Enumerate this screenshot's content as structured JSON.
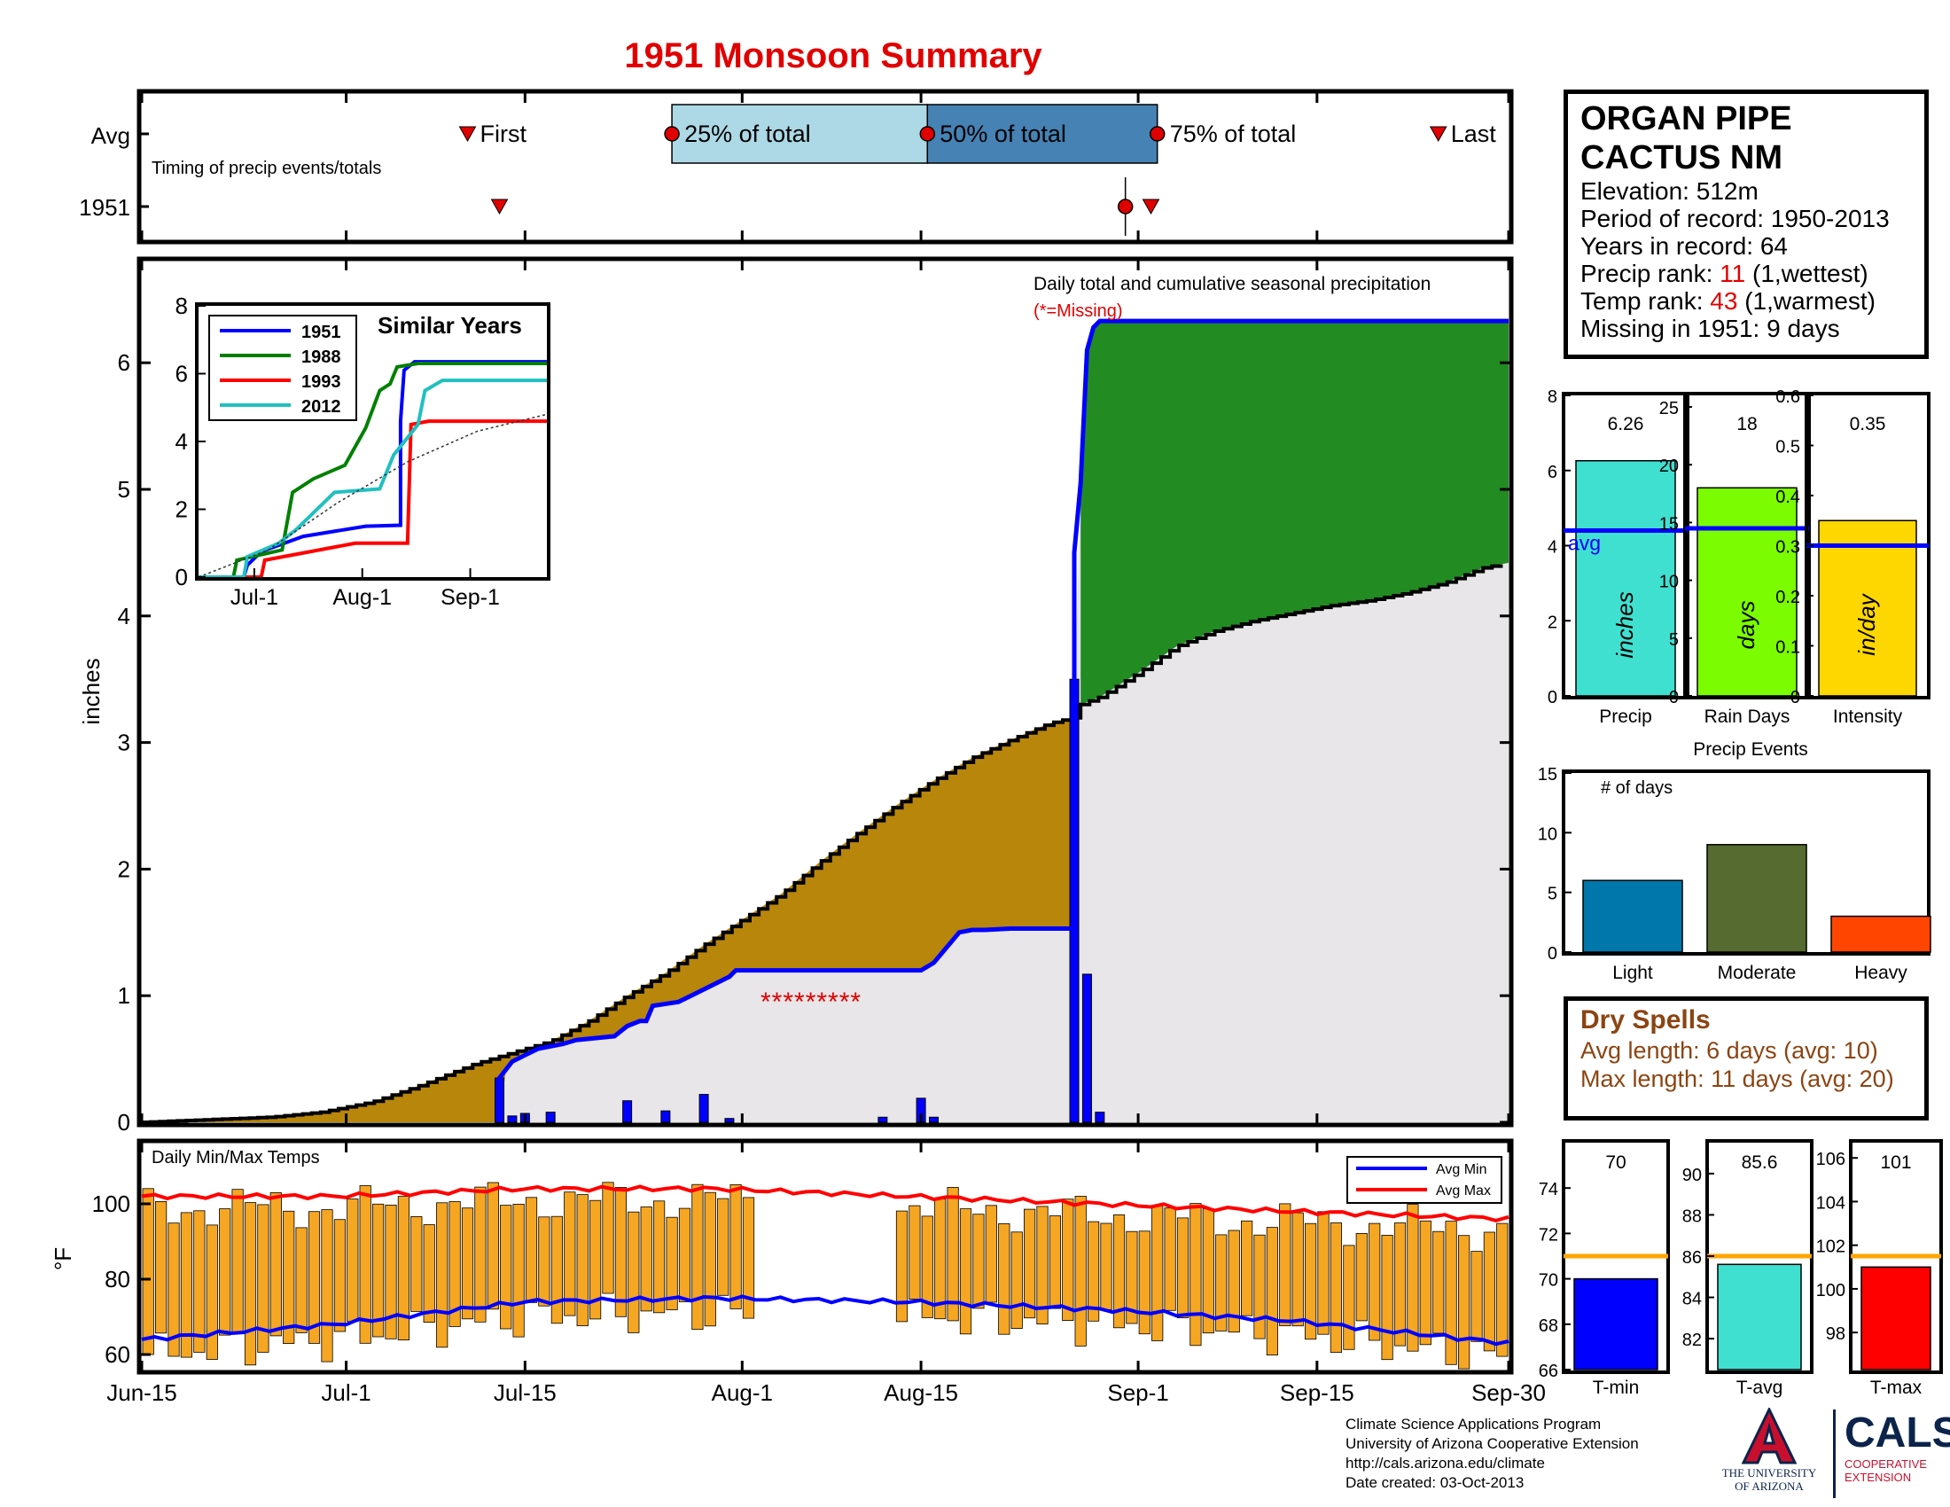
{
  "title": "1951 Monsoon Summary",
  "colors": {
    "title": "#e00000",
    "series_1951": "#0000ff",
    "series_1988": "#008000",
    "series_1993": "#ff0000",
    "series_2012": "#20c0c0",
    "avg_fill": "#b8860b",
    "above_avg_fill": "#228b22",
    "below_area": "#e8e6e8",
    "temp_bars": "#f5a623",
    "avg_min_line": "#0000ff",
    "avg_max_line": "#ff0000",
    "precip_bar": "#40e0d0",
    "raindays_bar": "#7cfc00",
    "intensity_bar": "#ffd700",
    "light": "#0077aa",
    "moderate": "#556b2f",
    "heavy": "#ff4500",
    "tmin_bar": "#0000ff",
    "tavg_bar": "#40e0d0",
    "tmax_bar": "#ff0000",
    "avg_line_orange": "#ffa500",
    "dry_text": "#8b4513"
  },
  "station": {
    "name_line1": "ORGAN PIPE",
    "name_line2": "CACTUS NM",
    "elevation": "Elevation: 512m",
    "period": "Period of record: 1950-2013",
    "years": "Years in record: 64",
    "precip_rank_label": "Precip rank: ",
    "precip_rank_value": "11",
    "precip_rank_note": " (1,wettest)",
    "temp_rank_label": "Temp rank: ",
    "temp_rank_value": "43",
    "temp_rank_note": " (1,warmest)",
    "missing": "Missing in 1951: 9 days"
  },
  "timing": {
    "row_labels": [
      "Avg",
      "1951"
    ],
    "caption": "Timing of precip events/totals",
    "first_label": "First",
    "last_label": "Last",
    "p25_label": "25% of total",
    "p50_label": "50% of total",
    "p75_label": "75% of total",
    "avg_first": 25.5,
    "avg_p25": 41.5,
    "avg_p50": 61.5,
    "avg_p75": 79.5,
    "avg_last": 101.5,
    "y1951_first": 28,
    "y1951_mark": 77,
    "y1951_last": 79
  },
  "main_chart": {
    "annotation": "Daily total and cumulative seasonal precipitation",
    "missing_note": "(*=Missing)",
    "missing_marks": "*********",
    "ylabel": "inches",
    "yticks": [
      "0",
      "1",
      "2",
      "3",
      "4",
      "5",
      "6"
    ],
    "xticks": [
      "Jun-15",
      "Jul-1",
      "Jul-15",
      "Aug-1",
      "Aug-15",
      "Sep-1",
      "Sep-15",
      "Sep-30"
    ],
    "xtick_days": [
      0,
      16,
      30,
      47,
      61,
      78,
      92,
      107
    ],
    "ylim": [
      0,
      6.8
    ],
    "xlim": [
      0,
      107
    ]
  },
  "chart_data": [
    {
      "type": "line",
      "title": "1951 Monsoon Summary",
      "xlabel": "",
      "ylabel": "inches",
      "series": [
        {
          "name": "1951 cumulative",
          "points": [
            [
              28,
              0
            ],
            [
              28,
              0.35
            ],
            [
              29,
              0.48
            ],
            [
              30,
              0.53
            ],
            [
              31,
              0.58
            ],
            [
              33,
              0.62
            ],
            [
              34,
              0.65
            ],
            [
              37,
              0.68
            ],
            [
              38,
              0.76
            ],
            [
              39,
              0.8
            ],
            [
              39.5,
              0.8
            ],
            [
              40,
              0.92
            ],
            [
              42,
              0.95
            ],
            [
              43,
              1.0
            ],
            [
              46,
              1.15
            ],
            [
              46.5,
              1.2
            ],
            [
              50,
              1.2
            ],
            [
              51,
              1.2
            ],
            [
              61,
              1.2
            ],
            [
              62,
              1.26
            ],
            [
              63,
              1.38
            ],
            [
              64,
              1.5
            ],
            [
              65,
              1.52
            ],
            [
              66,
              1.52
            ],
            [
              68,
              1.53
            ],
            [
              73,
              1.53
            ],
            [
              73,
              4.5
            ],
            [
              73.5,
              5.05
            ],
            [
              74,
              6.1
            ],
            [
              74.5,
              6.28
            ],
            [
              75,
              6.33
            ],
            [
              107,
              6.33
            ]
          ]
        },
        {
          "name": "Average cumulative",
          "points": [
            [
              0,
              0
            ],
            [
              5,
              0.02
            ],
            [
              10,
              0.04
            ],
            [
              14,
              0.08
            ],
            [
              18,
              0.16
            ],
            [
              22,
              0.3
            ],
            [
              26,
              0.46
            ],
            [
              29,
              0.55
            ],
            [
              32,
              0.64
            ],
            [
              35,
              0.8
            ],
            [
              38,
              1.0
            ],
            [
              41,
              1.18
            ],
            [
              44,
              1.4
            ],
            [
              47,
              1.6
            ],
            [
              50,
              1.8
            ],
            [
              53,
              2.05
            ],
            [
              56,
              2.28
            ],
            [
              59,
              2.5
            ],
            [
              62,
              2.7
            ],
            [
              65,
              2.88
            ],
            [
              68,
              3.02
            ],
            [
              71,
              3.15
            ],
            [
              73,
              3.2
            ],
            [
              73.5,
              3.3
            ],
            [
              75,
              3.36
            ],
            [
              78,
              3.55
            ],
            [
              81,
              3.76
            ],
            [
              84,
              3.88
            ],
            [
              87,
              3.96
            ],
            [
              90,
              4.02
            ],
            [
              93,
              4.08
            ],
            [
              96,
              4.12
            ],
            [
              99,
              4.18
            ],
            [
              102,
              4.26
            ],
            [
              105,
              4.38
            ],
            [
              107,
              4.42
            ]
          ]
        },
        {
          "name": "Daily precip 1951",
          "points": [
            [
              28,
              0.35
            ],
            [
              29,
              0.05
            ],
            [
              30,
              0.07
            ],
            [
              32,
              0.08
            ],
            [
              38,
              0.17
            ],
            [
              41,
              0.09
            ],
            [
              44,
              0.22
            ],
            [
              46,
              0.03
            ],
            [
              58,
              0.04
            ],
            [
              61,
              0.19
            ],
            [
              62,
              0.04
            ],
            [
              73,
              3.5
            ],
            [
              74,
              1.17
            ],
            [
              75,
              0.08
            ]
          ]
        }
      ],
      "ylim": [
        0,
        6.8
      ],
      "missing_days": [
        43,
        52
      ]
    },
    {
      "type": "line",
      "title": "Similar Years",
      "xticks": [
        "Jul-1",
        "Aug-1",
        "Sep-1"
      ],
      "yticks": [
        "0",
        "2",
        "4",
        "6",
        "8"
      ],
      "ylim": [
        0,
        8
      ],
      "series": [
        {
          "name": "1951",
          "points": [
            [
              0,
              0
            ],
            [
              13,
              0
            ],
            [
              14,
              0.35
            ],
            [
              18,
              0.75
            ],
            [
              30,
              1.2
            ],
            [
              48,
              1.5
            ],
            [
              58,
              1.53
            ],
            [
              58,
              4.6
            ],
            [
              59,
              6.1
            ],
            [
              62,
              6.35
            ],
            [
              100,
              6.35
            ]
          ]
        },
        {
          "name": "1988",
          "points": [
            [
              0,
              0
            ],
            [
              10,
              0
            ],
            [
              11,
              0.5
            ],
            [
              24,
              0.8
            ],
            [
              27,
              2.5
            ],
            [
              33,
              2.9
            ],
            [
              42,
              3.3
            ],
            [
              48,
              4.4
            ],
            [
              52,
              5.5
            ],
            [
              55,
              5.7
            ],
            [
              57,
              6.2
            ],
            [
              63,
              6.3
            ],
            [
              100,
              6.3
            ]
          ]
        },
        {
          "name": "1993",
          "points": [
            [
              0,
              0
            ],
            [
              18,
              0
            ],
            [
              19,
              0.5
            ],
            [
              45,
              1.0
            ],
            [
              60,
              1.0
            ],
            [
              61,
              4.5
            ],
            [
              66,
              4.6
            ],
            [
              100,
              4.6
            ]
          ]
        },
        {
          "name": "2012",
          "points": [
            [
              0,
              0
            ],
            [
              13,
              0
            ],
            [
              14,
              0.6
            ],
            [
              23,
              1.0
            ],
            [
              28,
              1.4
            ],
            [
              39,
              2.5
            ],
            [
              52,
              2.6
            ],
            [
              56,
              3.6
            ],
            [
              63,
              4.5
            ],
            [
              65,
              5.5
            ],
            [
              70,
              5.8
            ],
            [
              100,
              5.8
            ]
          ]
        },
        {
          "name": "Average",
          "points": [
            [
              0,
              0
            ],
            [
              20,
              0.8
            ],
            [
              40,
              2.2
            ],
            [
              60,
              3.4
            ],
            [
              80,
              4.3
            ],
            [
              100,
              4.8
            ]
          ]
        }
      ]
    },
    {
      "type": "bar",
      "title": "Daily Min/Max Temps",
      "ylabel": "°F",
      "yticks": [
        "60",
        "80",
        "100"
      ],
      "ylim": [
        56,
        116
      ],
      "legend": [
        "Avg Min",
        "Avg Max"
      ],
      "avg_min": [
        [
          0,
          64
        ],
        [
          15,
          68
        ],
        [
          30,
          74
        ],
        [
          45,
          75
        ],
        [
          60,
          74
        ],
        [
          75,
          72
        ],
        [
          90,
          69
        ],
        [
          107,
          63
        ]
      ],
      "avg_max": [
        [
          0,
          102
        ],
        [
          15,
          102
        ],
        [
          30,
          104
        ],
        [
          45,
          104
        ],
        [
          60,
          102
        ],
        [
          75,
          100
        ],
        [
          90,
          98
        ],
        [
          107,
          96
        ]
      ],
      "missing_range": [
        48,
        58
      ]
    },
    {
      "type": "bar",
      "categories": [
        "Precip",
        "Rain Days",
        "Intensity"
      ],
      "series": [
        {
          "name": "Precip",
          "value": 6.26,
          "avg": 4.4,
          "unit": "inches",
          "ylim": [
            0,
            8
          ],
          "yticks": [
            "0",
            "2",
            "4",
            "6",
            "8"
          ],
          "label": "6.26",
          "avg_label": "avg"
        },
        {
          "name": "Rain Days",
          "value": 18,
          "avg": 14.5,
          "unit": "days",
          "ylim": [
            0,
            26
          ],
          "yticks": [
            "0",
            "5",
            "10",
            "15",
            "20",
            "25"
          ],
          "label": "18"
        },
        {
          "name": "Intensity",
          "value": 0.35,
          "avg": 0.3,
          "unit": "in/day",
          "ylim": [
            0,
            0.6
          ],
          "yticks": [
            "0",
            "0.1",
            "0.2",
            "0.3",
            "0.4",
            "0.5",
            "0.6"
          ],
          "label": "0.35"
        }
      ]
    },
    {
      "type": "bar",
      "title": "Precip Events",
      "ylabel": "# of days",
      "categories": [
        "Light",
        "Moderate",
        "Heavy"
      ],
      "values": [
        6,
        9,
        3
      ],
      "ylim": [
        0,
        15
      ],
      "yticks": [
        "0",
        "5",
        "10",
        "15"
      ]
    },
    {
      "type": "bar",
      "categories": [
        "T-min",
        "T-avg",
        "T-max"
      ],
      "series": [
        {
          "name": "T-min",
          "value": 70,
          "avg": 71,
          "ylim": [
            66,
            76
          ],
          "yticks": [
            "66",
            "68",
            "70",
            "72",
            "74"
          ],
          "label": "70"
        },
        {
          "name": "T-avg",
          "value": 85.6,
          "avg": 86,
          "ylim": [
            80.5,
            91.5
          ],
          "yticks": [
            "82",
            "84",
            "86",
            "88",
            "90"
          ],
          "label": "85.6"
        },
        {
          "name": "T-max",
          "value": 101,
          "avg": 101.5,
          "ylim": [
            96.3,
            106.7
          ],
          "yticks": [
            "98",
            "100",
            "102",
            "104",
            "106"
          ],
          "label": "101"
        }
      ]
    }
  ],
  "temps_panel": {
    "caption": "Daily Min/Max Temps",
    "legend_min": "Avg Min",
    "legend_max": "Avg Max",
    "ylabel": "°F"
  },
  "dry_spells": {
    "title": "Dry Spells",
    "avg_length": "Avg length: 6 days (avg: 10)",
    "max_length": "Max length: 11 days (avg: 20)"
  },
  "precip_events": {
    "title": "Precip Events",
    "ylabel": "# of days"
  },
  "footer": {
    "line1": "Climate Science Applications Program",
    "line2": "University of Arizona Cooperative Extension",
    "line3": "http://cals.arizona.edu/climate",
    "line4": " Date created: 03-Oct-2013"
  },
  "logos": {
    "ua_line1": "THE UNIVERSITY",
    "ua_line2": "OF ARIZONA",
    "cals": "CALS",
    "cals_line1": "COOPERATIVE",
    "cals_line2": "EXTENSION"
  }
}
